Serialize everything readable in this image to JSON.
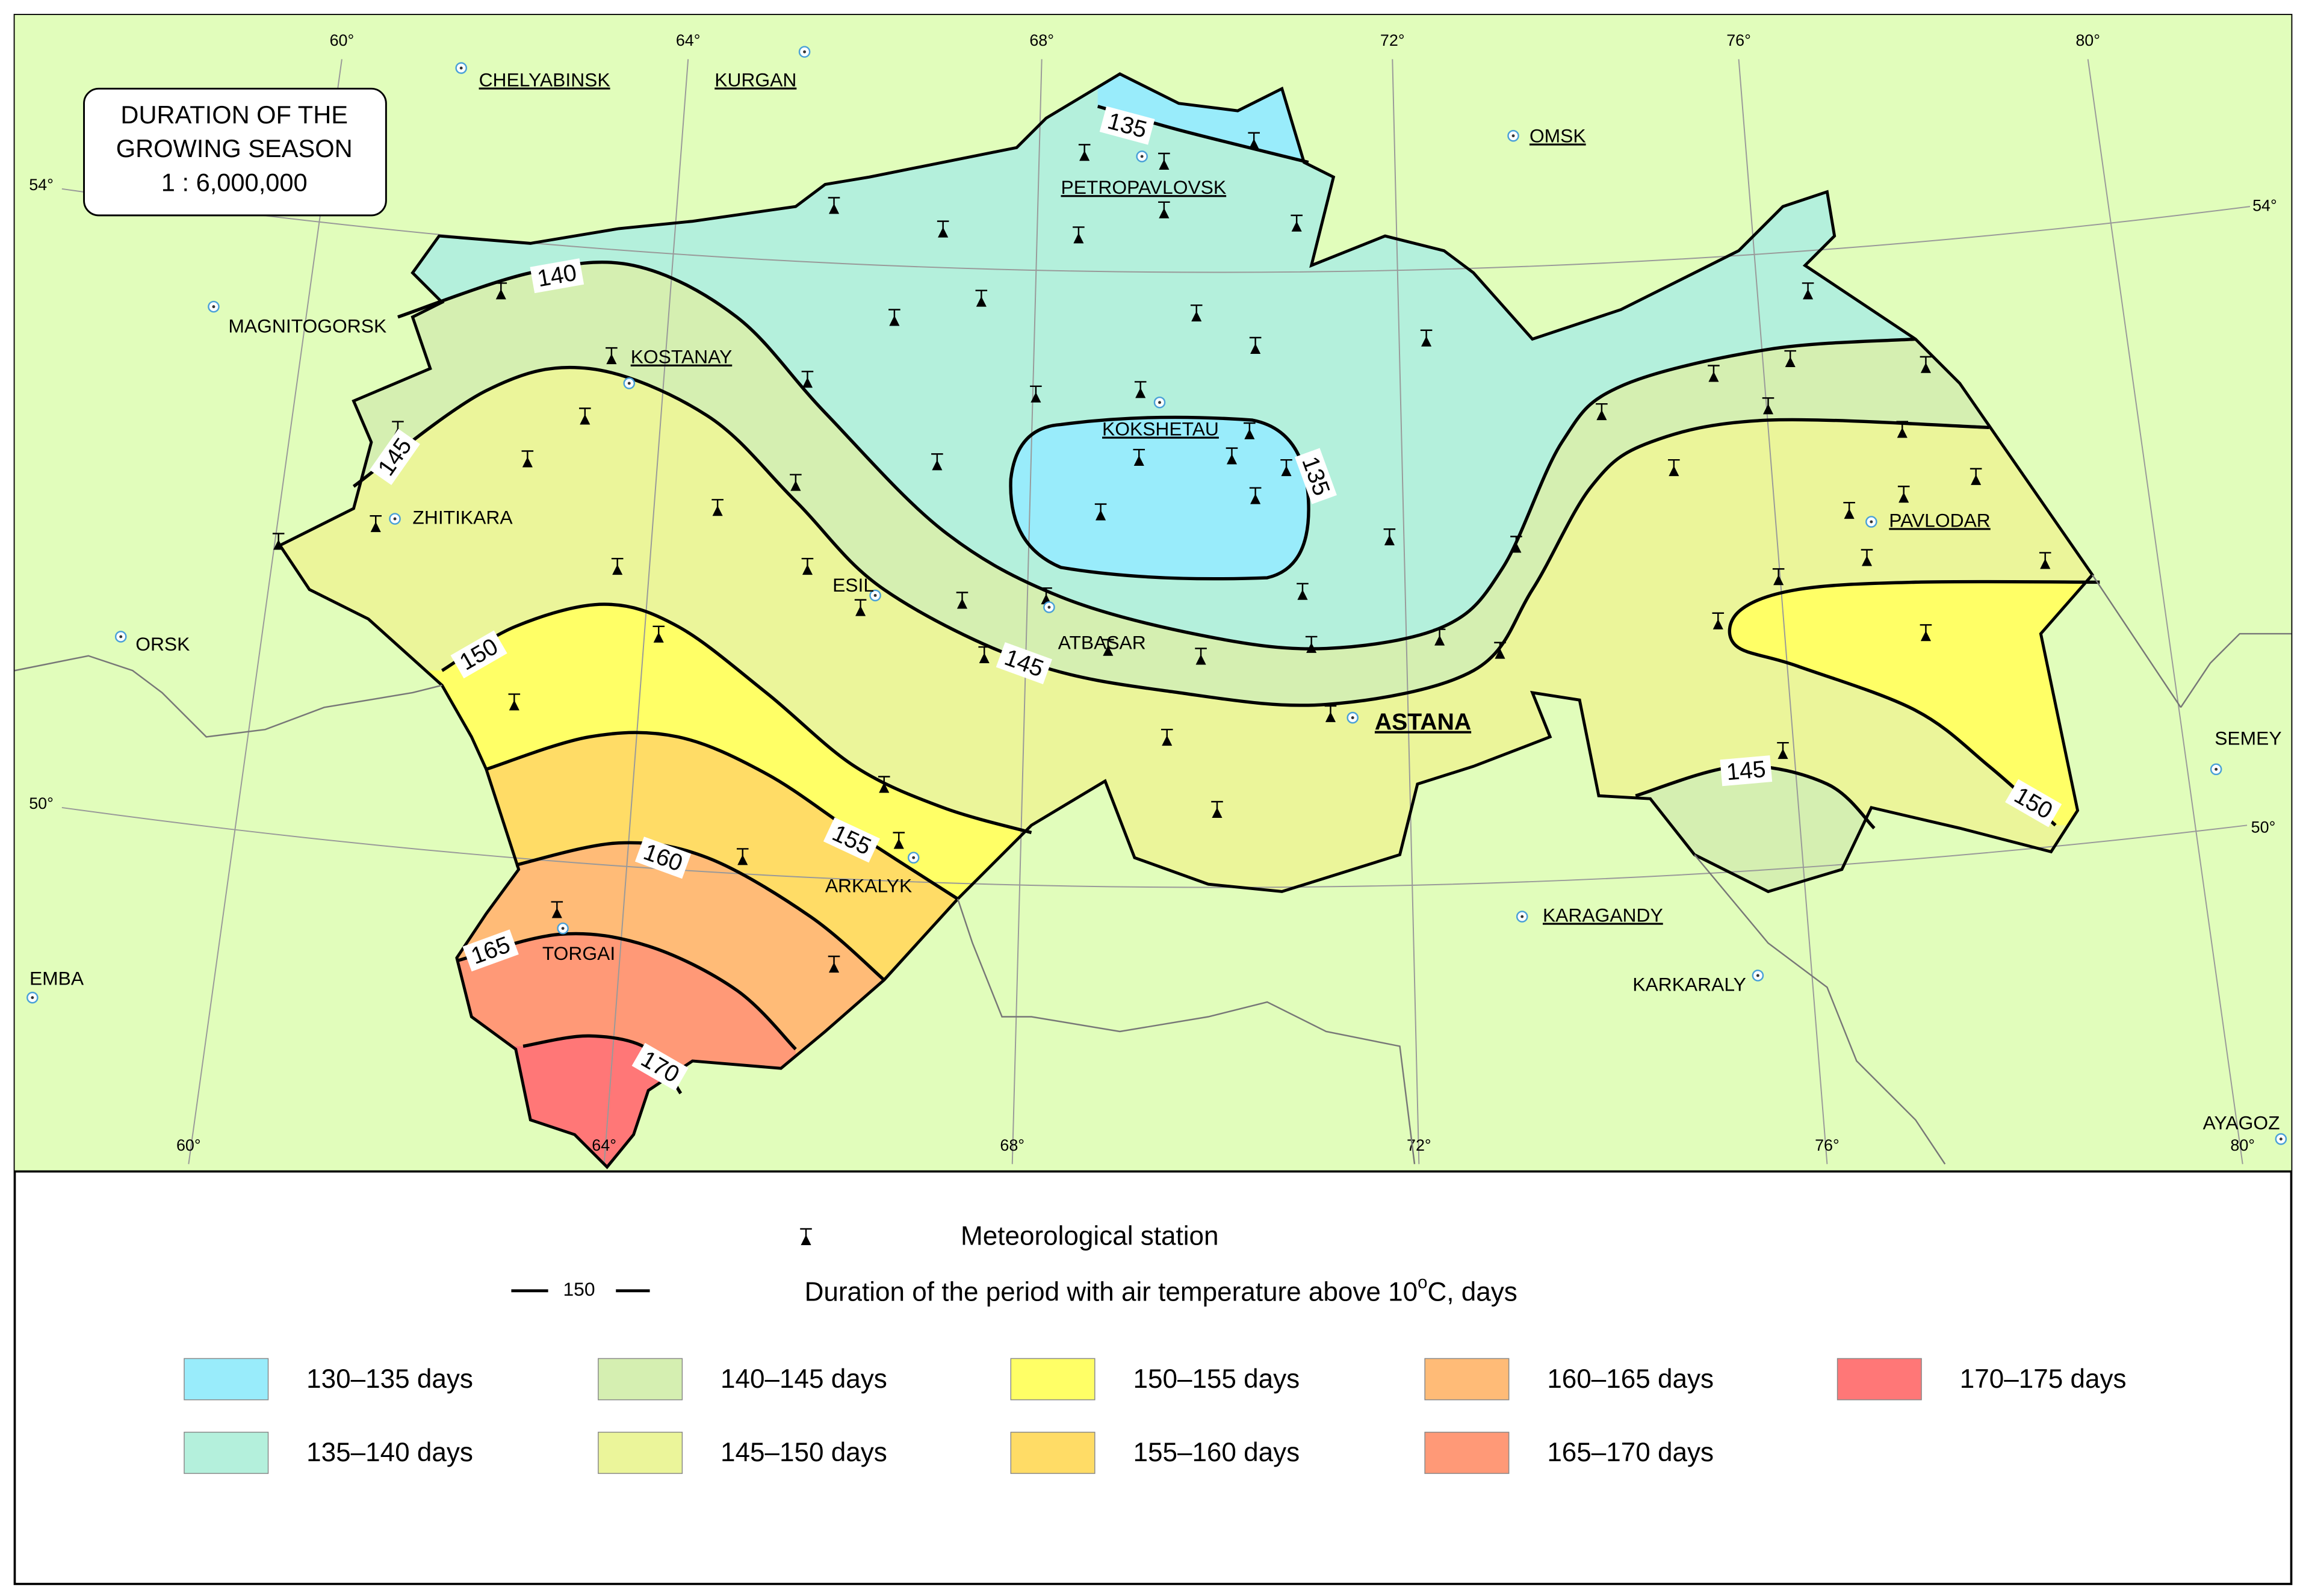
{
  "title": {
    "lines": [
      "DURATION OF THE",
      "GROWING SEASON"
    ],
    "scale": "1 : 6,000,000"
  },
  "graticule": {
    "longitudes_top": [
      "60°",
      "64°",
      "68°",
      "72°",
      "76°",
      "80°"
    ],
    "longitudes_bottom": [
      "60°",
      "64°",
      "68°",
      "72°",
      "76°",
      "80°"
    ],
    "latitudes_left": [
      "54°",
      "50°"
    ],
    "latitudes_right": [
      "54°",
      "50°"
    ]
  },
  "cities": [
    {
      "label": "CHELYABINSK",
      "underlined": true
    },
    {
      "label": "KURGAN",
      "underlined": true
    },
    {
      "label": "OMSK",
      "underlined": true
    },
    {
      "label": "PETROPAVLOVSK",
      "underlined": true
    },
    {
      "label": "MAGNITOGORSK",
      "underlined": false
    },
    {
      "label": "KOSTANAY",
      "underlined": true
    },
    {
      "label": "KOKSHETAU",
      "underlined": true
    },
    {
      "label": "ZHITIKARA",
      "underlined": false
    },
    {
      "label": "PAVLODAR",
      "underlined": true
    },
    {
      "label": "ESIL",
      "underlined": false
    },
    {
      "label": "ORSK",
      "underlined": false
    },
    {
      "label": "ATBASAR",
      "underlined": false
    },
    {
      "label": "ASTANA",
      "underlined": true
    },
    {
      "label": "SEMEY",
      "underlined": false
    },
    {
      "label": "ARKALYK",
      "underlined": false
    },
    {
      "label": "KARAGANDY",
      "underlined": true
    },
    {
      "label": "TORGAI",
      "underlined": false
    },
    {
      "label": "EMBA",
      "underlined": false
    },
    {
      "label": "KARKARALY",
      "underlined": false
    },
    {
      "label": "AYAGOZ",
      "underlined": false
    }
  ],
  "isoline_labels": [
    135,
    140,
    145,
    135,
    145,
    150,
    145,
    150,
    155,
    160,
    165,
    170
  ],
  "legend": {
    "station": "Meteorological station",
    "isoline_sample": "150",
    "isoline_text": "Duration of the period with air temperature above 10",
    "isoline_degree": "o",
    "isoline_unit": "C, days",
    "classes": [
      {
        "label": "130–135 days",
        "color": "#99ecfb"
      },
      {
        "label": "135–140 days",
        "color": "#b4f0dc"
      },
      {
        "label": "140–145 days",
        "color": "#d5efb1"
      },
      {
        "label": "145–150 days",
        "color": "#ebf59a"
      },
      {
        "label": "150–155 days",
        "color": "#ffff66"
      },
      {
        "label": "155–160 days",
        "color": "#ffdc66"
      },
      {
        "label": "160–165 days",
        "color": "#ffbb77"
      },
      {
        "label": "165–170 days",
        "color": "#ff9977"
      },
      {
        "label": "170–175 days",
        "color": "#ff7777"
      }
    ]
  }
}
